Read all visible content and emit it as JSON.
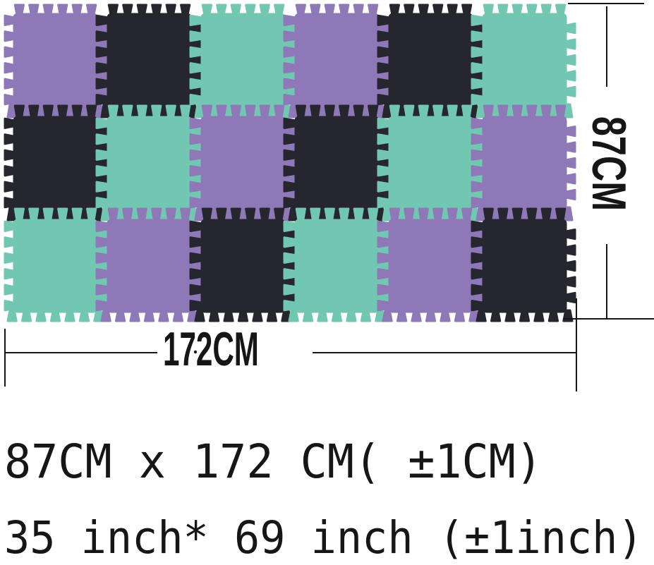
{
  "mat": {
    "rows": 3,
    "cols": 6,
    "grid": [
      [
        "purple",
        "black",
        "teal",
        "purple",
        "black",
        "teal"
      ],
      [
        "black",
        "teal",
        "purple",
        "black",
        "teal",
        "purple"
      ],
      [
        "teal",
        "purple",
        "black",
        "teal",
        "purple",
        "black"
      ]
    ],
    "colors": {
      "purple": "#8f78b8",
      "black": "#26262e",
      "teal": "#72c7b2"
    }
  },
  "dimension_labels": {
    "height": "87CM",
    "width": "172CM"
  },
  "caption": {
    "line1": "87CM x 172 CM( ±1CM)",
    "line2": "35 inch* 69 inch (±1inch)"
  },
  "ink_color": "#161616",
  "background_color": "#ffffff"
}
